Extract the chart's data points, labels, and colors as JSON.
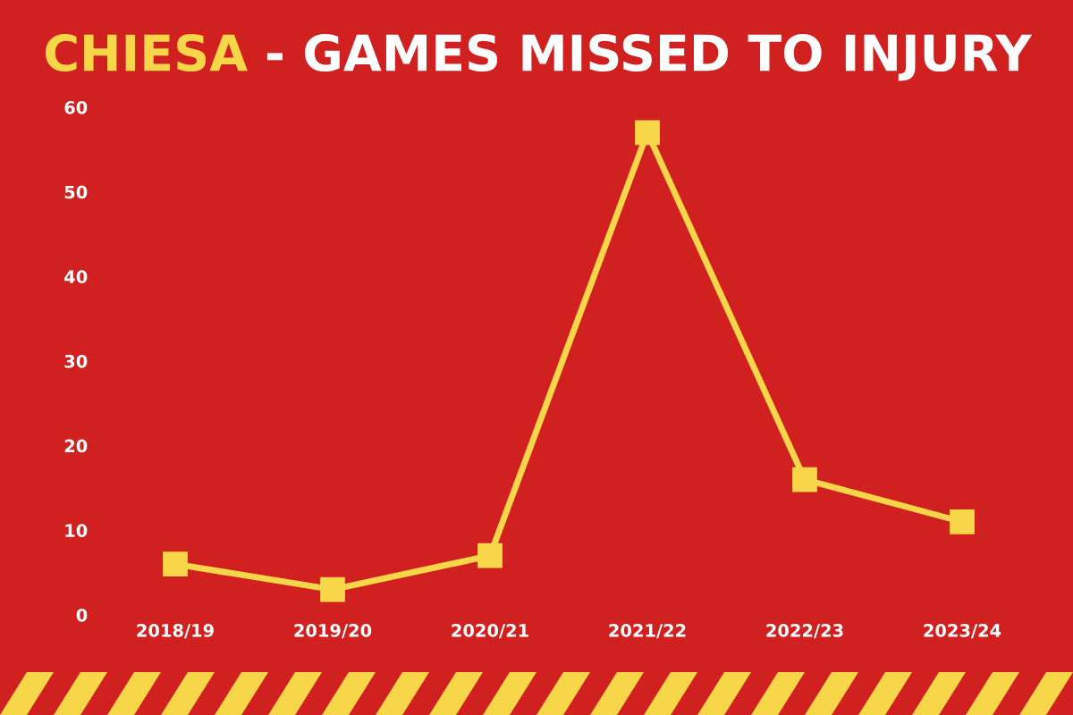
{
  "chart_data": {
    "type": "line",
    "title": "CHIESA - GAMES MISSED TO INJURY",
    "categories": [
      "2018/19",
      "2019/20",
      "2020/21",
      "2021/22",
      "2022/23",
      "2023/24"
    ],
    "series": [
      {
        "color": "#f7d64a",
        "values": [
          6,
          3,
          7,
          57,
          16,
          11
        ]
      }
    ],
    "ylim": [
      0,
      60
    ],
    "yticks": [
      0,
      10,
      20,
      30,
      40,
      50,
      60
    ],
    "grid": false,
    "legend": false,
    "marker": "square",
    "line_style": "solid"
  }
}
